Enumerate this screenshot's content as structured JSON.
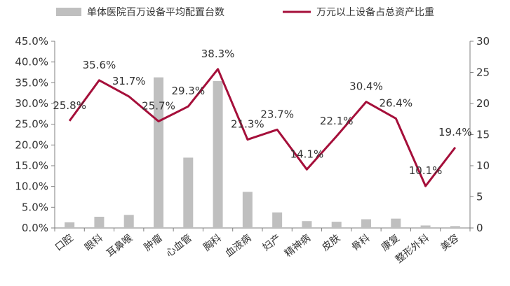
{
  "chart_data": {
    "type": "bar+line",
    "categories": [
      "口腔",
      "眼科",
      "耳鼻喉",
      "肿瘤",
      "心血管",
      "胸科",
      "血液病",
      "妇产",
      "精神病",
      "皮肤",
      "骨科",
      "康复",
      "整形外科",
      "美容"
    ],
    "series": [
      {
        "name": "单体医院百万设备平均配置台数",
        "type": "bar",
        "axis": "right",
        "color": "#bfbfbf",
        "values": [
          0.9,
          1.8,
          2.1,
          24.2,
          11.3,
          23.6,
          5.8,
          2.5,
          1.1,
          1.0,
          1.4,
          1.5,
          0.4,
          0.3
        ]
      },
      {
        "name": "万元以上设备占总资产比重",
        "type": "line",
        "axis": "left",
        "color": "#a50f3a",
        "values": [
          25.8,
          35.6,
          31.7,
          25.7,
          29.3,
          38.3,
          21.3,
          23.7,
          14.1,
          22.1,
          30.4,
          26.4,
          10.1,
          19.4
        ],
        "labels": [
          "25.8%",
          "35.6%",
          "31.7%",
          "25.7%",
          "29.3%",
          "38.3%",
          "21.3%",
          "23.7%",
          "14.1%",
          "22.1%",
          "30.4%",
          "26.4%",
          "10.1%",
          "19.4%"
        ]
      }
    ],
    "y_left": {
      "min": 0,
      "max": 45,
      "ticks": [
        "0.0%",
        "5.0%",
        "10.0%",
        "15.0%",
        "20.0%",
        "25.0%",
        "30.0%",
        "35.0%",
        "40.0%",
        "45.0%"
      ]
    },
    "y_right": {
      "min": 0,
      "max": 30,
      "ticks": [
        "0",
        "5",
        "10",
        "15",
        "20",
        "25",
        "30"
      ]
    },
    "legend_position": "top",
    "grid": false
  }
}
